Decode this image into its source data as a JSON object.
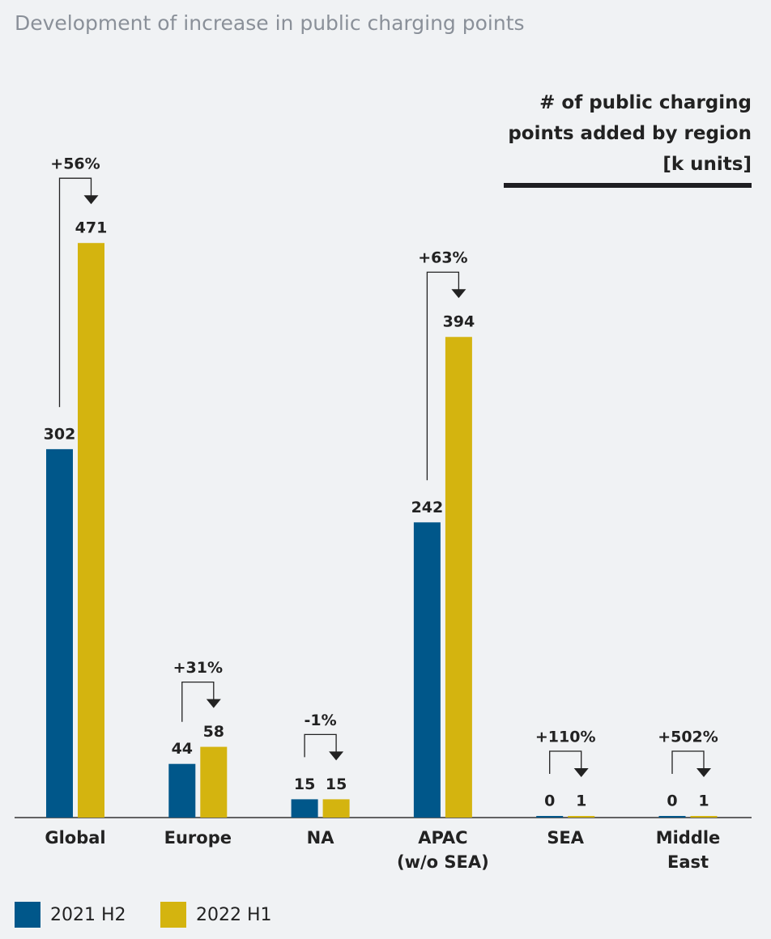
{
  "chart_data": {
    "type": "bar",
    "title": "Development of increase in public charging points",
    "axis_note": "# of public charging\npoints added by region\n[k units]",
    "categories": [
      "Global",
      "Europe",
      "NA",
      "APAC\n(w/o SEA)",
      "SEA",
      "Middle\nEast"
    ],
    "series": [
      {
        "name": "2021 H2",
        "color": "#00578a",
        "values": [
          302,
          44,
          15,
          242,
          0,
          0
        ]
      },
      {
        "name": "2022 H1",
        "color": "#d4b40f",
        "values": [
          471,
          58,
          15,
          394,
          1,
          1
        ]
      }
    ],
    "annotations": [
      "+56%",
      "+31%",
      "-1%",
      "+63%",
      "+110%",
      "+502%"
    ],
    "ylim": [
      0,
      500
    ],
    "legend": "bottom-left"
  }
}
